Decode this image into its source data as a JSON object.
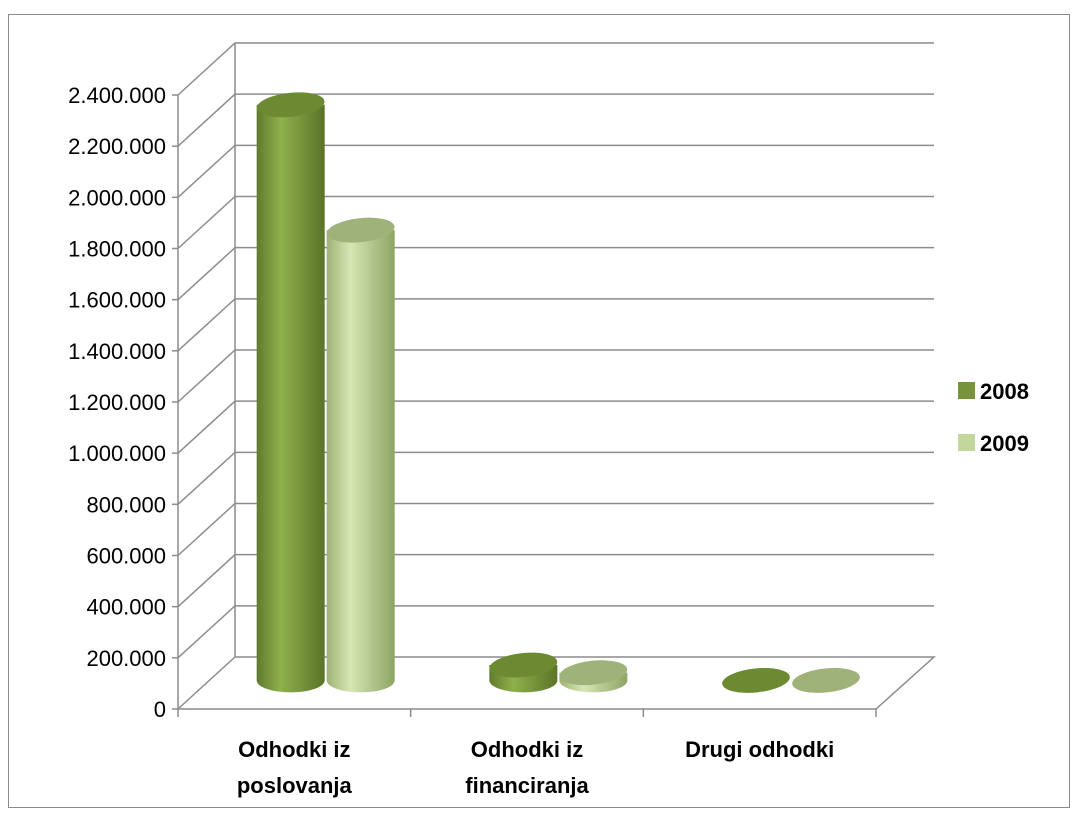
{
  "chart_data": {
    "type": "bar",
    "title": "",
    "xlabel": "",
    "ylabel": "",
    "categories": [
      [
        "Odhodki iz",
        "poslovanja"
      ],
      [
        "Odhodki iz",
        "financiranja"
      ],
      [
        "Drugi odhodki"
      ]
    ],
    "series": [
      {
        "name": "2008",
        "values": [
          2250000,
          60000,
          0
        ],
        "color": "#77933c"
      },
      {
        "name": "2009",
        "values": [
          1760000,
          30000,
          0
        ],
        "color": "#c3d69b"
      }
    ],
    "ylim": [
      0,
      2400000
    ],
    "yticks": [
      0,
      200000,
      400000,
      600000,
      800000,
      1000000,
      1200000,
      1400000,
      1600000,
      1800000,
      2000000,
      2200000,
      2400000
    ],
    "ytick_labels": [
      "0",
      "200.000",
      "400.000",
      "600.000",
      "800.000",
      "1.000.000",
      "1.200.000",
      "1.400.000",
      "1.600.000",
      "1.800.000",
      "2.000.000",
      "2.200.000",
      "2.400.000"
    ],
    "grid": true,
    "legend_position": "right",
    "style": "3d-cylinder"
  }
}
